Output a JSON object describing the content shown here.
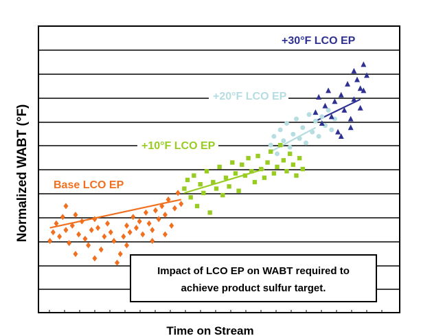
{
  "chart_data": {
    "type": "scatter",
    "title": "",
    "xlabel": "Time on Stream",
    "ylabel": "Normalized WABT (°F)",
    "xlim": [
      0,
      100
    ],
    "ylim": [
      0,
      100
    ],
    "grid": "horizontal",
    "annotation": "Impact of LCO EP on WABT required to achieve product sulfur target.",
    "series": [
      {
        "name": "Base LCO EP",
        "marker": "diamond",
        "color": "#f07020",
        "trend": [
          [
            1,
            20
          ],
          [
            42,
            33
          ]
        ],
        "points": [
          [
            1,
            14
          ],
          [
            2,
            18
          ],
          [
            3,
            22
          ],
          [
            4,
            16
          ],
          [
            5,
            25
          ],
          [
            6,
            19
          ],
          [
            7,
            13
          ],
          [
            8,
            21
          ],
          [
            9,
            26
          ],
          [
            10,
            17
          ],
          [
            11,
            23
          ],
          [
            12,
            15
          ],
          [
            13,
            12
          ],
          [
            14,
            19
          ],
          [
            15,
            24
          ],
          [
            16,
            20
          ],
          [
            17,
            10
          ],
          [
            18,
            16
          ],
          [
            19,
            22
          ],
          [
            20,
            18
          ],
          [
            21,
            14
          ],
          [
            22,
            4
          ],
          [
            23,
            8
          ],
          [
            24,
            16
          ],
          [
            25,
            21
          ],
          [
            26,
            18
          ],
          [
            27,
            25
          ],
          [
            28,
            20
          ],
          [
            29,
            23
          ],
          [
            30,
            17
          ],
          [
            31,
            27
          ],
          [
            32,
            22
          ],
          [
            33,
            19
          ],
          [
            34,
            28
          ],
          [
            35,
            24
          ],
          [
            36,
            30
          ],
          [
            37,
            26
          ],
          [
            38,
            33
          ],
          [
            39,
            21
          ],
          [
            40,
            29
          ],
          [
            41,
            36
          ],
          [
            42,
            31
          ],
          [
            6,
            30
          ],
          [
            9,
            8
          ],
          [
            15,
            6
          ],
          [
            25,
            12
          ],
          [
            33,
            14
          ],
          [
            37,
            17
          ]
        ]
      },
      {
        "name": "+10°F LCO EP",
        "marker": "square",
        "color": "#99cc22",
        "trend": [
          [
            43,
            36
          ],
          [
            68,
            47
          ]
        ],
        "points": [
          [
            43,
            38
          ],
          [
            44,
            42
          ],
          [
            45,
            34
          ],
          [
            46,
            44
          ],
          [
            47,
            30
          ],
          [
            48,
            40
          ],
          [
            49,
            36
          ],
          [
            50,
            46
          ],
          [
            51,
            27
          ],
          [
            52,
            41
          ],
          [
            53,
            38
          ],
          [
            54,
            48
          ],
          [
            55,
            35
          ],
          [
            56,
            43
          ],
          [
            57,
            39
          ],
          [
            58,
            50
          ],
          [
            59,
            45
          ],
          [
            60,
            37
          ],
          [
            61,
            49
          ],
          [
            62,
            44
          ],
          [
            63,
            52
          ],
          [
            64,
            46
          ],
          [
            65,
            41
          ],
          [
            66,
            53
          ],
          [
            67,
            47
          ],
          [
            68,
            43
          ],
          [
            69,
            50
          ],
          [
            70,
            55
          ],
          [
            71,
            45
          ],
          [
            72,
            48
          ],
          [
            73,
            58
          ],
          [
            74,
            51
          ],
          [
            75,
            46
          ],
          [
            76,
            54
          ],
          [
            77,
            49
          ],
          [
            78,
            44
          ],
          [
            79,
            52
          ],
          [
            80,
            47
          ]
        ]
      },
      {
        "name": "+20°F LCO EP",
        "marker": "circle",
        "color": "#b6dde0",
        "trend": [
          [
            70,
            55
          ],
          [
            84,
            66
          ]
        ],
        "points": [
          [
            70,
            58
          ],
          [
            71,
            62
          ],
          [
            72,
            54
          ],
          [
            73,
            65
          ],
          [
            74,
            60
          ],
          [
            75,
            68
          ],
          [
            76,
            57
          ],
          [
            77,
            63
          ],
          [
            78,
            70
          ],
          [
            79,
            61
          ],
          [
            80,
            66
          ],
          [
            81,
            59
          ],
          [
            82,
            72
          ],
          [
            83,
            64
          ],
          [
            84,
            69
          ],
          [
            85,
            62
          ],
          [
            86,
            71
          ],
          [
            87,
            67
          ],
          [
            88,
            74
          ],
          [
            89,
            65
          ],
          [
            90,
            70
          ]
        ]
      },
      {
        "name": "+30°F LCO EP",
        "marker": "triangle",
        "color": "#2e3192",
        "trend": [
          [
            84,
            69
          ],
          [
            98,
            79
          ]
        ],
        "points": [
          [
            84,
            73
          ],
          [
            85,
            80
          ],
          [
            86,
            68
          ],
          [
            87,
            76
          ],
          [
            88,
            83
          ],
          [
            89,
            71
          ],
          [
            90,
            78
          ],
          [
            91,
            64
          ],
          [
            92,
            81
          ],
          [
            93,
            74
          ],
          [
            94,
            86
          ],
          [
            95,
            70
          ],
          [
            96,
            79
          ],
          [
            97,
            88
          ],
          [
            98,
            75
          ],
          [
            99,
            83
          ],
          [
            100,
            90
          ],
          [
            92,
            62
          ],
          [
            95,
            66
          ],
          [
            98,
            84
          ],
          [
            96,
            92
          ],
          [
            99,
            95
          ]
        ]
      }
    ]
  }
}
